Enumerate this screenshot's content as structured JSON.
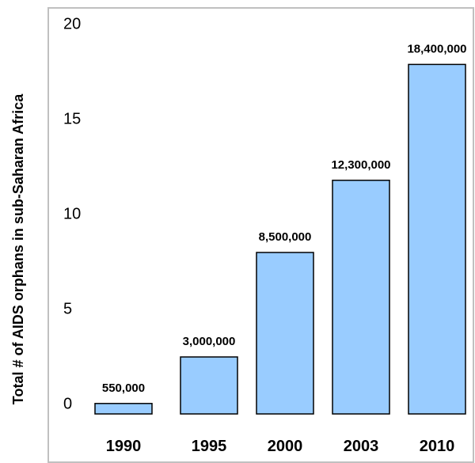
{
  "chart_data": {
    "type": "bar",
    "title": "",
    "xlabel": "",
    "ylabel": "Total # of AIDS orphans in sub-Saharan Africa",
    "categories": [
      "1990",
      "1995",
      "2000",
      "2003",
      "2010"
    ],
    "values": [
      0.55,
      3.0,
      8.5,
      12.3,
      18.4
    ],
    "data_labels": [
      "550,000",
      "3,000,000",
      "8,500,000",
      "12,300,000",
      "18,400,000"
    ],
    "y_ticks": [
      "0",
      "5",
      "10",
      "15",
      "20"
    ],
    "ylim": [
      0,
      20
    ],
    "grid": false,
    "colors": {
      "bar_fill": "#99ccff",
      "bar_stroke": "#000000",
      "frame": "#c0c0c0"
    }
  }
}
